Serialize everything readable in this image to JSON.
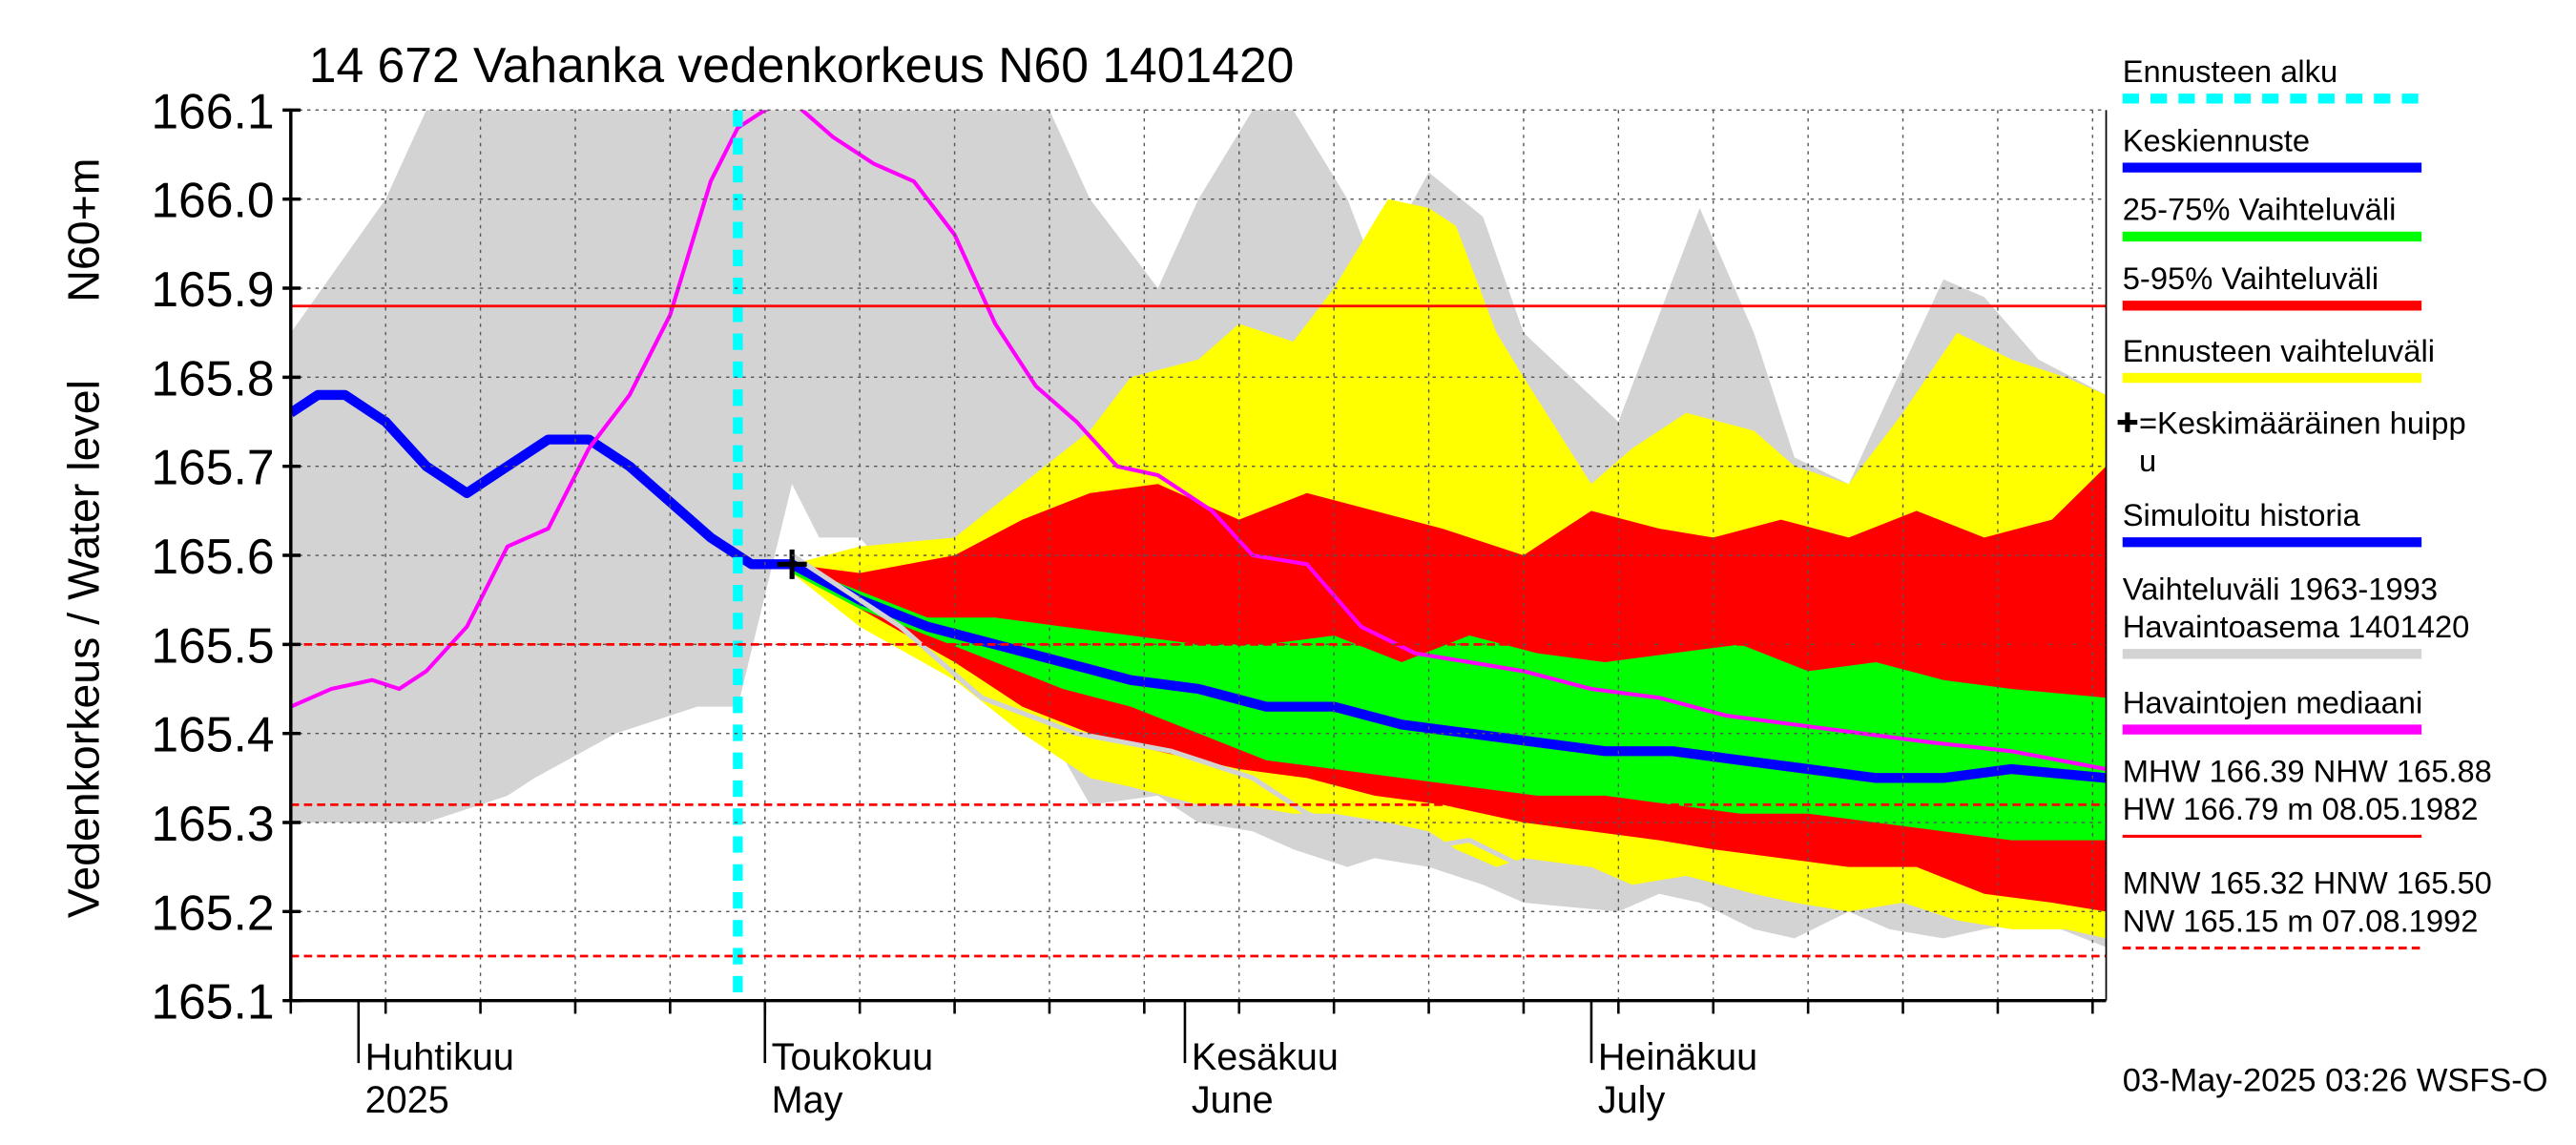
{
  "chart_data": {
    "type": "area",
    "title": "14 672 Vahanka vedenkorkeus N60 1401420",
    "ylabel": "Vedenkorkeus / Water level",
    "yunit": "N60+m",
    "ylim": [
      165.1,
      166.1
    ],
    "yticks": [
      "166.1",
      "166.0",
      "165.9",
      "165.8",
      "165.7",
      "165.6",
      "165.5",
      "165.4",
      "165.3",
      "165.2",
      "165.1"
    ],
    "xlim": [
      "2025-03-27",
      "2025-08-08"
    ],
    "month_labels": [
      {
        "fi": "Huhtikuu",
        "en": "2025",
        "date": "2025-04-01"
      },
      {
        "fi": "Toukokuu",
        "en": "May",
        "date": "2025-05-01"
      },
      {
        "fi": "Kesäkuu",
        "en": "June",
        "date": "2025-06-01"
      },
      {
        "fi": "Heinäkuu",
        "en": "July",
        "date": "2025-07-01"
      }
    ],
    "forecast_start": "2025-04-29",
    "average_peak": {
      "date": "2025-05-03",
      "y": 165.59
    },
    "reference_lines": [
      {
        "name": "MHW",
        "y": 166.39,
        "style": "solid"
      },
      {
        "name": "NHW",
        "y": 165.88,
        "style": "solid"
      },
      {
        "name": "HNW",
        "y": 165.5,
        "style": "dashed"
      },
      {
        "name": "MNW",
        "y": 165.32,
        "style": "dashed"
      },
      {
        "name": "NW",
        "y": 165.15,
        "style": "dashed"
      }
    ],
    "series": [
      {
        "name": "Vaihteluväli 1963-1993 Havaintoasema 1401420",
        "color": "#d3d3d3",
        "x": [
          "2025-03-27",
          "2025-04-03",
          "2025-04-06",
          "2025-04-12",
          "2025-04-14",
          "2025-04-20",
          "2025-04-26",
          "2025-04-29",
          "2025-05-03",
          "2025-05-05",
          "2025-05-08",
          "2025-05-15",
          "2025-05-22",
          "2025-05-25",
          "2025-05-30",
          "2025-06-02",
          "2025-06-06",
          "2025-06-09",
          "2025-06-13",
          "2025-06-15",
          "2025-06-19",
          "2025-06-23",
          "2025-06-26",
          "2025-07-03",
          "2025-07-06",
          "2025-07-09",
          "2025-07-13",
          "2025-07-16",
          "2025-07-20",
          "2025-07-23",
          "2025-07-27",
          "2025-07-30",
          "2025-08-03",
          "2025-08-08"
        ],
        "upper": [
          165.85,
          166.0,
          166.1,
          166.1,
          166.1,
          166.1,
          166.1,
          166.1,
          166.1,
          166.1,
          166.1,
          166.1,
          166.1,
          166.0,
          165.9,
          166.0,
          166.1,
          166.1,
          166.0,
          165.92,
          166.03,
          165.98,
          165.85,
          165.75,
          165.87,
          165.99,
          165.85,
          165.71,
          165.68,
          165.78,
          165.91,
          165.89,
          165.82,
          165.78
        ],
        "lower": [
          165.3,
          165.3,
          165.3,
          165.33,
          165.35,
          165.4,
          165.43,
          165.43,
          165.68,
          165.62,
          165.62,
          165.5,
          165.4,
          165.32,
          165.33,
          165.3,
          165.29,
          165.27,
          165.25,
          165.26,
          165.25,
          165.23,
          165.21,
          165.2,
          165.22,
          165.21,
          165.18,
          165.17,
          165.2,
          165.18,
          165.17,
          165.18,
          165.19,
          165.16
        ]
      },
      {
        "name": "Ennusteen vaihteluväli",
        "color": "#ffff00",
        "x": [
          "2025-05-03",
          "2025-05-08",
          "2025-05-15",
          "2025-05-20",
          "2025-05-25",
          "2025-05-28",
          "2025-06-02",
          "2025-06-05",
          "2025-06-09",
          "2025-06-12",
          "2025-06-16",
          "2025-06-19",
          "2025-06-21",
          "2025-06-24",
          "2025-06-26",
          "2025-07-01",
          "2025-07-04",
          "2025-07-08",
          "2025-07-13",
          "2025-07-16",
          "2025-07-20",
          "2025-07-24",
          "2025-07-28",
          "2025-08-01",
          "2025-08-05",
          "2025-08-08"
        ],
        "upper": [
          165.59,
          165.61,
          165.62,
          165.68,
          165.74,
          165.8,
          165.82,
          165.86,
          165.84,
          165.9,
          166.0,
          165.99,
          165.97,
          165.85,
          165.8,
          165.68,
          165.72,
          165.76,
          165.74,
          165.7,
          165.68,
          165.76,
          165.85,
          165.82,
          165.8,
          165.78
        ],
        "lower": [
          165.58,
          165.52,
          165.46,
          165.4,
          165.35,
          165.34,
          165.32,
          165.32,
          165.31,
          165.31,
          165.3,
          165.29,
          165.27,
          165.25,
          165.26,
          165.25,
          165.23,
          165.24,
          165.22,
          165.21,
          165.2,
          165.21,
          165.19,
          165.18,
          165.18,
          165.17
        ]
      },
      {
        "name": "5-95% Vaihteluväli",
        "color": "#ff0000",
        "x": [
          "2025-05-03",
          "2025-05-08",
          "2025-05-15",
          "2025-05-20",
          "2025-05-25",
          "2025-05-30",
          "2025-06-05",
          "2025-06-10",
          "2025-06-15",
          "2025-06-20",
          "2025-06-26",
          "2025-07-01",
          "2025-07-06",
          "2025-07-10",
          "2025-07-15",
          "2025-07-20",
          "2025-07-25",
          "2025-07-30",
          "2025-08-04",
          "2025-08-08"
        ],
        "upper": [
          165.59,
          165.58,
          165.6,
          165.64,
          165.67,
          165.68,
          165.64,
          165.67,
          165.65,
          165.63,
          165.6,
          165.65,
          165.63,
          165.62,
          165.64,
          165.62,
          165.65,
          165.62,
          165.64,
          165.7
        ],
        "lower": [
          165.58,
          165.54,
          165.48,
          165.43,
          165.4,
          165.38,
          165.36,
          165.35,
          165.33,
          165.32,
          165.3,
          165.29,
          165.28,
          165.27,
          165.26,
          165.25,
          165.25,
          165.22,
          165.21,
          165.2
        ]
      },
      {
        "name": "25-75% Vaihteluväli",
        "color": "#00ff00",
        "x": [
          "2025-05-03",
          "2025-05-08",
          "2025-05-13",
          "2025-05-18",
          "2025-05-23",
          "2025-05-28",
          "2025-06-02",
          "2025-06-07",
          "2025-06-12",
          "2025-06-17",
          "2025-06-22",
          "2025-06-27",
          "2025-07-02",
          "2025-07-07",
          "2025-07-12",
          "2025-07-17",
          "2025-07-22",
          "2025-07-27",
          "2025-08-01",
          "2025-08-08"
        ],
        "upper": [
          165.59,
          165.56,
          165.53,
          165.53,
          165.52,
          165.51,
          165.5,
          165.5,
          165.51,
          165.48,
          165.51,
          165.49,
          165.48,
          165.49,
          165.5,
          165.47,
          165.48,
          165.46,
          165.45,
          165.44
        ],
        "lower": [
          165.58,
          165.54,
          165.51,
          165.48,
          165.45,
          165.43,
          165.4,
          165.37,
          165.36,
          165.35,
          165.34,
          165.33,
          165.33,
          165.32,
          165.31,
          165.31,
          165.3,
          165.29,
          165.28,
          165.28
        ]
      },
      {
        "name": "Simuloitu historia",
        "color": "#0000ff",
        "x": [
          "2025-03-27",
          "2025-03-29",
          "2025-03-31",
          "2025-04-03",
          "2025-04-06",
          "2025-04-09",
          "2025-04-12",
          "2025-04-15",
          "2025-04-18",
          "2025-04-21",
          "2025-04-24",
          "2025-04-27",
          "2025-04-30",
          "2025-05-03"
        ],
        "values": [
          165.76,
          165.78,
          165.78,
          165.75,
          165.7,
          165.67,
          165.7,
          165.73,
          165.73,
          165.7,
          165.66,
          165.62,
          165.59,
          165.59
        ]
      },
      {
        "name": "Keskiennuste",
        "color": "#0000ff",
        "x": [
          "2025-05-03",
          "2025-05-08",
          "2025-05-13",
          "2025-05-18",
          "2025-05-23",
          "2025-05-28",
          "2025-06-02",
          "2025-06-07",
          "2025-06-12",
          "2025-06-17",
          "2025-06-22",
          "2025-06-27",
          "2025-07-02",
          "2025-07-07",
          "2025-07-12",
          "2025-07-17",
          "2025-07-22",
          "2025-07-27",
          "2025-08-01",
          "2025-08-08"
        ],
        "values": [
          165.59,
          165.55,
          165.52,
          165.5,
          165.48,
          165.46,
          165.45,
          165.43,
          165.43,
          165.41,
          165.4,
          165.39,
          165.38,
          165.38,
          165.37,
          165.36,
          165.35,
          165.35,
          165.36,
          165.35
        ]
      },
      {
        "name": "Havaintojen mediaani",
        "color": "#ff00ff",
        "x": [
          "2025-03-27",
          "2025-03-30",
          "2025-04-02",
          "2025-04-04",
          "2025-04-06",
          "2025-04-09",
          "2025-04-12",
          "2025-04-15",
          "2025-04-18",
          "2025-04-21",
          "2025-04-24",
          "2025-04-27",
          "2025-04-29",
          "2025-05-01",
          "2025-05-03",
          "2025-05-06",
          "2025-05-09",
          "2025-05-12",
          "2025-05-15",
          "2025-05-18",
          "2025-05-21",
          "2025-05-24",
          "2025-05-27",
          "2025-05-30",
          "2025-06-03",
          "2025-06-06",
          "2025-06-10",
          "2025-06-14",
          "2025-06-18",
          "2025-06-22",
          "2025-06-26",
          "2025-07-01",
          "2025-07-06",
          "2025-07-11",
          "2025-07-16",
          "2025-07-21",
          "2025-07-26",
          "2025-08-01",
          "2025-08-08"
        ],
        "values": [
          165.43,
          165.45,
          165.46,
          165.45,
          165.47,
          165.52,
          165.61,
          165.63,
          165.72,
          165.78,
          165.87,
          166.02,
          166.08,
          166.1,
          166.11,
          166.07,
          166.04,
          166.02,
          165.96,
          165.86,
          165.79,
          165.75,
          165.7,
          165.69,
          165.65,
          165.6,
          165.59,
          165.52,
          165.49,
          165.48,
          165.47,
          165.45,
          165.44,
          165.42,
          165.41,
          165.4,
          165.39,
          165.38,
          165.36
        ]
      },
      {
        "name": "Pale trace",
        "color": "#d3d3d3",
        "x": [
          "2025-05-03",
          "2025-05-11",
          "2025-05-17",
          "2025-05-24",
          "2025-05-31",
          "2025-06-06",
          "2025-06-10",
          "2025-06-14",
          "2025-06-18",
          "2025-06-22",
          "2025-06-26"
        ],
        "values": [
          165.6,
          165.52,
          165.44,
          165.4,
          165.38,
          165.35,
          165.31,
          165.29,
          165.27,
          165.28,
          165.25
        ]
      }
    ],
    "legend_placement": "right"
  },
  "legend": {
    "items": [
      {
        "label": "Ennusteen alku",
        "color": "#00ffff",
        "style": "dashed"
      },
      {
        "label": "Keskiennuste",
        "color": "#0000ff",
        "style": "solid"
      },
      {
        "label": "25-75% Vaihteluväli",
        "color": "#00ff00",
        "style": "solid"
      },
      {
        "label": "5-95% Vaihteluväli",
        "color": "#ff0000",
        "style": "solid"
      },
      {
        "label": "Ennusteen vaihteluväli",
        "color": "#ffff00",
        "style": "solid"
      },
      {
        "label_lines": [
          "=Keskimääräinen huipp",
          "u"
        ],
        "color": "#000000",
        "style": "plus"
      },
      {
        "label": "Simuloitu historia",
        "color": "#0000ff",
        "style": "solid"
      },
      {
        "label_lines": [
          "Vaihteluväli 1963-1993",
          " Havaintoasema 1401420"
        ],
        "color": "#d3d3d3",
        "style": "solid"
      },
      {
        "label": "Havaintojen mediaani",
        "color": "#ff00ff",
        "style": "solid"
      },
      {
        "label_lines": [
          "MHW 166.39 NHW 165.88",
          "HW 166.79 m 08.05.1982"
        ],
        "color": "#ff0000",
        "style": "solid"
      },
      {
        "label_lines": [
          "MNW 165.32 HNW 165.50",
          "NW 165.15 m 07.08.1992"
        ],
        "color": "#ff0000",
        "style": "dashed"
      }
    ]
  },
  "footer": {
    "timestamp": "03-May-2025 03:26 WSFS-O"
  }
}
